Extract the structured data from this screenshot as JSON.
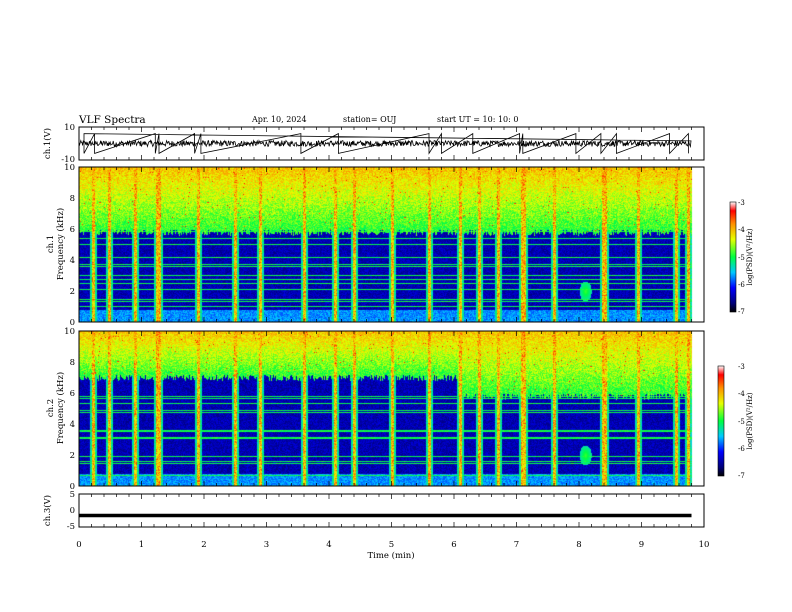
{
  "header": {
    "title": "VLF Spectra",
    "date": "Apr. 10, 2024",
    "station": "station= OUJ",
    "start": "start  UT  =   10: 10: 0"
  },
  "chart_data": [
    {
      "type": "line",
      "panel": "waveform-ch1",
      "ylabel": "ch.1(V)",
      "ylim": [
        -10,
        10
      ],
      "yticks": [
        "10",
        "-10"
      ],
      "xlim": [
        0,
        10
      ],
      "baseline": 0,
      "noise_amplitude": 1.8,
      "spikes_min": [
        0.08,
        0.25,
        1.22,
        1.28,
        1.85,
        1.95,
        3.55,
        4.15,
        5.6,
        5.8,
        6.3,
        7.05,
        7.1,
        7.95,
        8.35,
        8.6,
        9.45,
        9.75
      ]
    },
    {
      "type": "heatmap",
      "panel": "spectrogram-ch1",
      "ylabel_line1": "ch.1",
      "ylabel_line2": "Frequency (kHz)",
      "xlim": [
        0,
        10
      ],
      "ylim": [
        0,
        10
      ],
      "yticks": [
        "0",
        "2",
        "4",
        "6",
        "8",
        "10"
      ],
      "data_end_min": 9.8,
      "noise_floor_khz": 5.8,
      "sferic_columns_min": [
        0.22,
        0.48,
        0.9,
        1.25,
        1.28,
        1.9,
        2.5,
        2.9,
        3.6,
        4.1,
        4.4,
        5.0,
        5.6,
        6.1,
        6.4,
        6.7,
        7.08,
        7.12,
        7.6,
        8.38,
        8.42,
        8.95,
        9.55,
        9.75
      ],
      "hiss_blob": {
        "time_min": 8.1,
        "freq_khz": 2.0
      },
      "colorbar": {
        "label": "log(PSD)(V²/Hz)",
        "ticks": [
          "-3",
          "-4",
          "-5",
          "-6",
          "-7"
        ],
        "range": [
          -7,
          -3
        ]
      }
    },
    {
      "type": "heatmap",
      "panel": "spectrogram-ch2",
      "ylabel_line1": "ch.2",
      "ylabel_line2": "Frequency (kHz)",
      "xlim": [
        0,
        10
      ],
      "ylim": [
        0,
        10
      ],
      "yticks": [
        "0",
        "2",
        "4",
        "6",
        "8",
        "10"
      ],
      "data_end_min": 9.8,
      "noise_floor_khz_before": 7.0,
      "noise_floor_khz_after": 5.8,
      "floor_change_min": 6.05,
      "sferic_columns_min": [
        0.22,
        0.48,
        0.9,
        1.25,
        1.28,
        1.9,
        2.5,
        2.9,
        3.6,
        4.1,
        4.4,
        5.0,
        5.6,
        6.1,
        6.4,
        6.7,
        7.08,
        7.12,
        7.6,
        8.38,
        8.42,
        8.95,
        9.55,
        9.75
      ],
      "hiss_blob": {
        "time_min": 8.1,
        "freq_khz": 2.0
      },
      "colorbar": {
        "label": "log(PSD)(V²/Hz)",
        "ticks": [
          "-3",
          "-4",
          "-5",
          "-6",
          "-7"
        ],
        "range": [
          -7,
          -3
        ]
      }
    },
    {
      "type": "line",
      "panel": "waveform-ch3",
      "ylabel": "ch.3(V)",
      "ylim": [
        -5,
        5
      ],
      "yticks": [
        "5",
        "0",
        "-5"
      ],
      "xlim": [
        0,
        10
      ],
      "baseline": -1.5
    }
  ],
  "xaxis": {
    "label": "Time (min)",
    "ticks": [
      "0",
      "1",
      "2",
      "3",
      "4",
      "5",
      "6",
      "7",
      "8",
      "9",
      "10"
    ]
  }
}
